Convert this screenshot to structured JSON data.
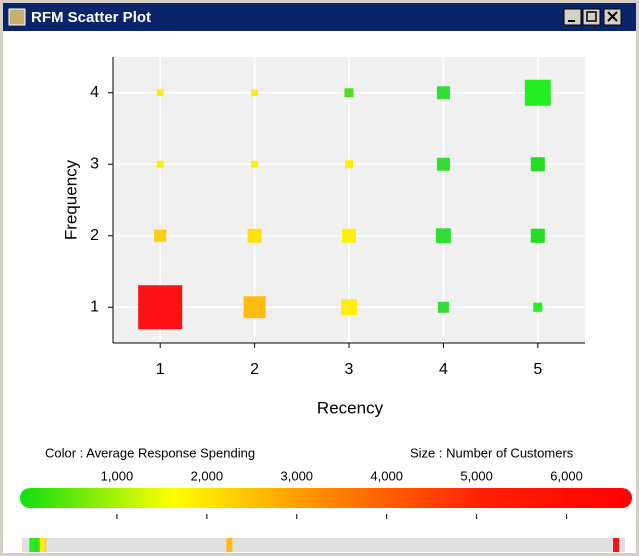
{
  "window_title": "RFM Scatter Plot",
  "chart_data": {
    "type": "scatter",
    "xlabel": "Recency",
    "ylabel": "Frequency",
    "x": [
      1,
      1,
      1,
      1,
      2,
      2,
      2,
      2,
      3,
      3,
      3,
      3,
      4,
      4,
      4,
      4,
      5,
      5,
      5,
      5
    ],
    "y": [
      1,
      2,
      3,
      4,
      1,
      2,
      3,
      4,
      1,
      2,
      3,
      4,
      1,
      2,
      3,
      4,
      1,
      2,
      3,
      4
    ],
    "sizes": [
      6400,
      480,
      160,
      160,
      1600,
      650,
      160,
      160,
      850,
      650,
      210,
      270,
      400,
      740,
      560,
      560,
      270,
      650,
      650,
      2230
    ],
    "spending": [
      6550,
      180,
      150,
      150,
      2250,
      170,
      150,
      150,
      160,
      160,
      150,
      110,
      80,
      80,
      80,
      80,
      60,
      70,
      70,
      60
    ],
    "colors": [
      "#ff1010",
      "#ffcc10",
      "#ffee00",
      "#ffee00",
      "#ffbb10",
      "#ffe010",
      "#ffee00",
      "#ffee00",
      "#ffee10",
      "#ffee10",
      "#ffee00",
      "#55dd22",
      "#33dd33",
      "#33dd33",
      "#33dd33",
      "#33dd33",
      "#22ee22",
      "#22dd22",
      "#22dd22",
      "#22ee22"
    ],
    "xlim": [
      0.5,
      5.5
    ],
    "ylim": [
      0.5,
      4.5
    ],
    "xticks": [
      1,
      2,
      3,
      4,
      5
    ],
    "yticks": [
      1,
      2,
      3,
      4
    ],
    "grid": true,
    "color_label": "Color :  Average Response Spending",
    "size_label": "Size :  Number of Customers",
    "colorbar": {
      "lim": [
        0,
        6650
      ],
      "ticks": [
        {
          "value": 1000,
          "label": "1,000"
        },
        {
          "value": 2000,
          "label": "2,000"
        },
        {
          "value": 3000,
          "label": "3,000"
        },
        {
          "value": 4000,
          "label": "4,000"
        },
        {
          "value": 5000,
          "label": "5,000"
        },
        {
          "value": 6000,
          "label": "6,000"
        }
      ],
      "colors": [
        "#11dd11",
        "#ffff00",
        "#ff8800",
        "#ff2200",
        "#ff0000"
      ]
    }
  }
}
